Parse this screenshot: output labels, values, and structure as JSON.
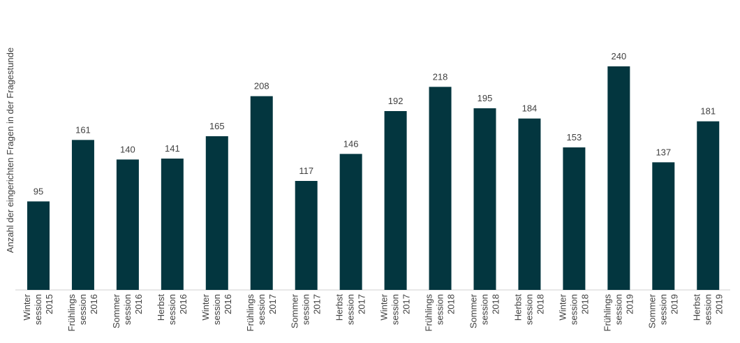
{
  "chart_data": {
    "type": "bar",
    "y_label": "Anzahl der eingerichten Fragen in der Fragestunde",
    "categories": [
      [
        "Winter",
        "session",
        "2015"
      ],
      [
        "Frühlings",
        "session",
        "2016"
      ],
      [
        "Sommer",
        "session",
        "2016"
      ],
      [
        "Herbst",
        "session",
        "2016"
      ],
      [
        "Winter",
        "session",
        "2016"
      ],
      [
        "Frühlings",
        "session",
        "2017"
      ],
      [
        "Sommer",
        "session",
        "2017"
      ],
      [
        "Herbst",
        "session",
        "2017"
      ],
      [
        "Winter",
        "session",
        "2017"
      ],
      [
        "Frühlings",
        "session",
        "2018"
      ],
      [
        "Sommer",
        "session",
        "2018"
      ],
      [
        "Herbst",
        "session",
        "2018"
      ],
      [
        "Winter",
        "session",
        "2018"
      ],
      [
        "Frühlings",
        "session",
        "2019"
      ],
      [
        "Sommer",
        "session",
        "2019"
      ],
      [
        "Herbst",
        "session",
        "2019"
      ]
    ],
    "values": [
      95,
      161,
      140,
      141,
      165,
      208,
      117,
      146,
      192,
      218,
      195,
      184,
      153,
      240,
      137,
      181
    ],
    "color": "#03363f"
  }
}
